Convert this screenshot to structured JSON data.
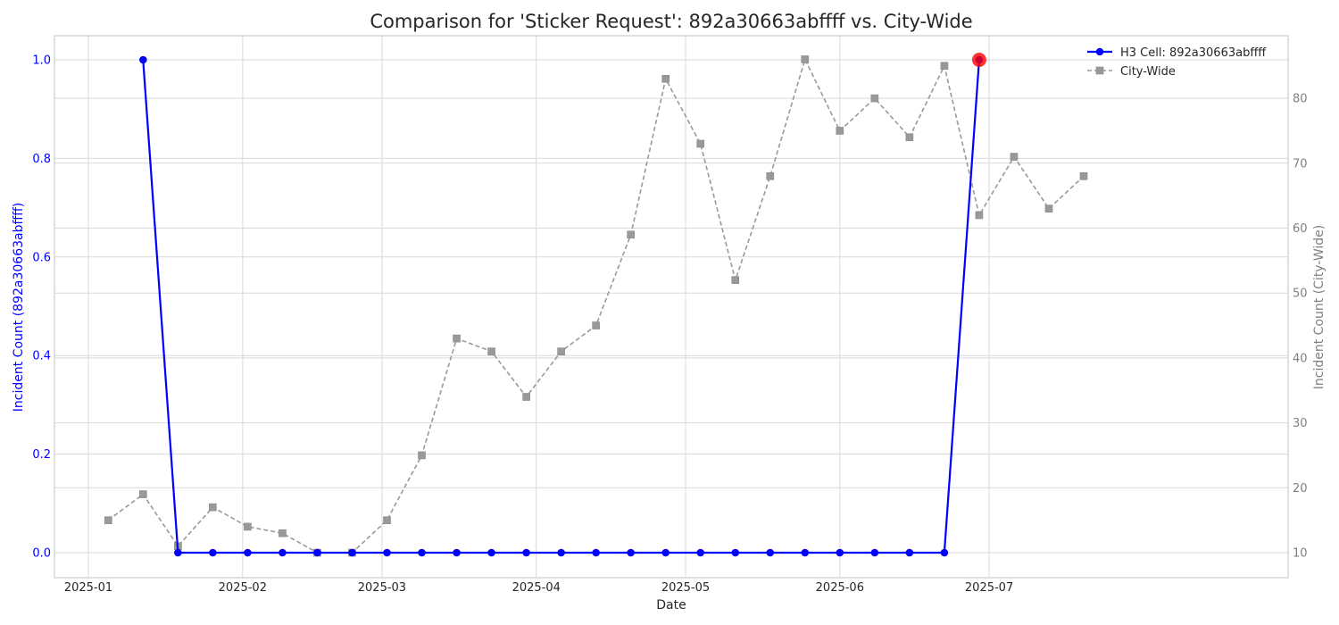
{
  "chart_data": {
    "type": "line",
    "title": "Comparison for 'Sticker Request': 892a30663abffff vs. City-Wide",
    "xlabel": "Date",
    "ylabel_left": "Incident Count (892a30663abffff)",
    "ylabel_right": "Incident Count (City-Wide)",
    "x_tick_labels": [
      "2025-01",
      "2025-02",
      "2025-03",
      "2025-04",
      "2025-05",
      "2025-06",
      "2025-07"
    ],
    "y_left_ticks": [
      "0.0",
      "0.2",
      "0.4",
      "0.6",
      "0.8",
      "1.0"
    ],
    "y_right_ticks": [
      "10",
      "20",
      "30",
      "40",
      "50",
      "60",
      "70",
      "80"
    ],
    "grid": true,
    "legend_position": "top-right",
    "colors": {
      "h3": "#0000ff",
      "city": "#999999",
      "highlight": "#ff0000"
    },
    "series": [
      {
        "name": "H3 Cell: 892a30663abffff",
        "axis": "left",
        "x": [
          "2025-01-12",
          "2025-01-19",
          "2025-01-26",
          "2025-02-02",
          "2025-02-09",
          "2025-02-16",
          "2025-02-23",
          "2025-03-02",
          "2025-03-09",
          "2025-03-16",
          "2025-03-23",
          "2025-03-30",
          "2025-04-06",
          "2025-04-13",
          "2025-04-20",
          "2025-04-27",
          "2025-05-04",
          "2025-05-11",
          "2025-05-18",
          "2025-05-25",
          "2025-06-01",
          "2025-06-08",
          "2025-06-15",
          "2025-06-22",
          "2025-06-29"
        ],
        "values": [
          1,
          0,
          0,
          0,
          0,
          0,
          0,
          0,
          0,
          0,
          0,
          0,
          0,
          0,
          0,
          0,
          0,
          0,
          0,
          0,
          0,
          0,
          0,
          0,
          1
        ]
      },
      {
        "name": "City-Wide",
        "axis": "right",
        "x": [
          "2025-01-05",
          "2025-01-12",
          "2025-01-19",
          "2025-01-26",
          "2025-02-02",
          "2025-02-09",
          "2025-02-16",
          "2025-02-23",
          "2025-03-02",
          "2025-03-09",
          "2025-03-16",
          "2025-03-23",
          "2025-03-30",
          "2025-04-06",
          "2025-04-13",
          "2025-04-20",
          "2025-04-27",
          "2025-05-04",
          "2025-05-11",
          "2025-05-18",
          "2025-05-25",
          "2025-06-01",
          "2025-06-08",
          "2025-06-15",
          "2025-06-22",
          "2025-06-29",
          "2025-07-06",
          "2025-07-13",
          "2025-07-20"
        ],
        "values": [
          15,
          19,
          11,
          17,
          14,
          13,
          10,
          10,
          15,
          25,
          43,
          41,
          34,
          41,
          45,
          59,
          83,
          73,
          52,
          68,
          86,
          75,
          80,
          74,
          85,
          62,
          71,
          63,
          68
        ]
      }
    ],
    "highlight_point": {
      "x": "2025-06-29",
      "value": 1
    }
  }
}
